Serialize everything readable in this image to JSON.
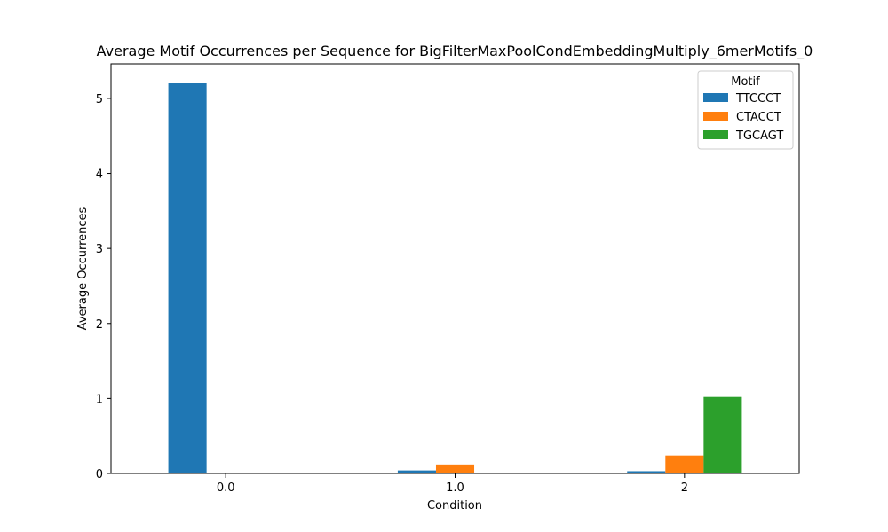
{
  "chart_data": {
    "type": "bar",
    "title": "Average Motif Occurrences per Sequence for BigFilterMaxPoolCondEmbeddingMultiply_6merMotifs_0",
    "xlabel": "Condition",
    "ylabel": "Average Occurrences",
    "categories": [
      "0.0",
      "1.0",
      "2"
    ],
    "ylim": [
      0,
      5.46
    ],
    "yticks": [
      "0",
      "1",
      "2",
      "3",
      "4",
      "5"
    ],
    "legend": {
      "title": "Motif",
      "placement": "top-right"
    },
    "grid": false,
    "series": [
      {
        "name": "TTCCCT",
        "color": "#1f77b4",
        "values": [
          5.2,
          0.04,
          0.03
        ]
      },
      {
        "name": "CTACCT",
        "color": "#ff7f0e",
        "values": [
          0.0,
          0.12,
          0.24
        ]
      },
      {
        "name": "TGCAGT",
        "color": "#2ca02c",
        "values": [
          0.0,
          0.0,
          1.02
        ]
      }
    ]
  }
}
